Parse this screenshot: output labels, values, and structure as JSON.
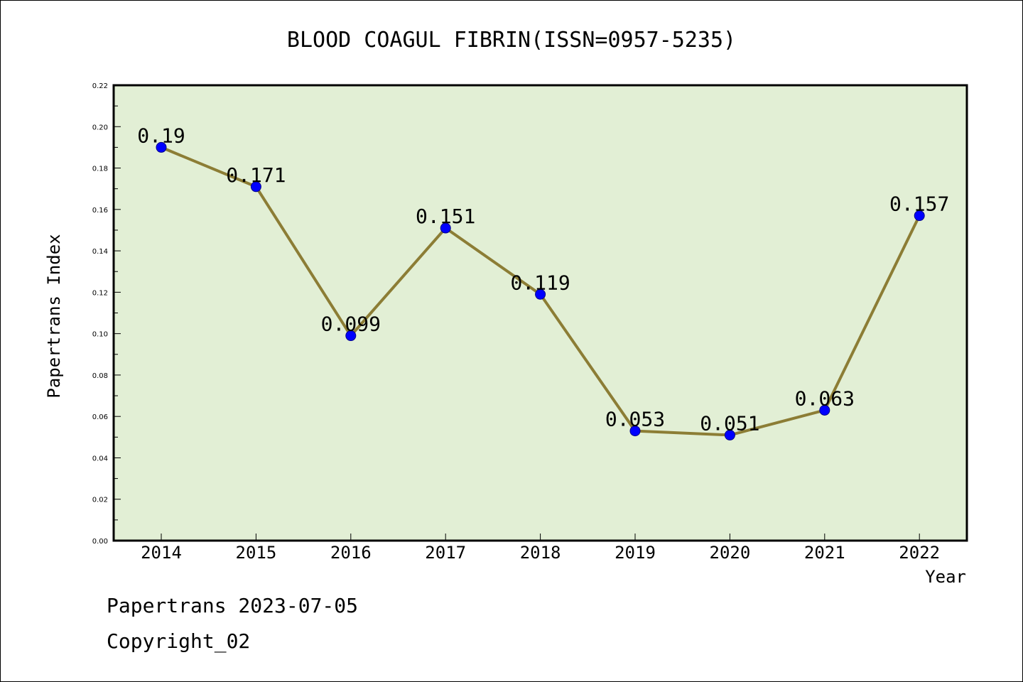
{
  "colors": {
    "plot_background": "#e2efd5",
    "line": "#8c7d35",
    "marker": "#0000ff",
    "marker_edge": "#00008b",
    "axis": "#000000"
  },
  "chart_data": {
    "type": "line",
    "title": "BLOOD COAGUL FIBRIN(ISSN=0957-5235)",
    "xlabel": "Year",
    "ylabel": "Papertrans Index",
    "categories": [
      "2014",
      "2015",
      "2016",
      "2017",
      "2018",
      "2019",
      "2020",
      "2021",
      "2022"
    ],
    "values": [
      0.19,
      0.171,
      0.099,
      0.151,
      0.119,
      0.053,
      0.051,
      0.063,
      0.157
    ],
    "value_labels": [
      "0.19",
      "0.171",
      "0.099",
      "0.151",
      "0.119",
      "0.053",
      "0.051",
      "0.063",
      "0.157"
    ],
    "ylim": [
      0,
      0.22
    ],
    "yticks": [
      "0.00",
      "0.02",
      "0.04",
      "0.06",
      "0.08",
      "0.10",
      "0.12",
      "0.14",
      "0.16",
      "0.18",
      "0.20",
      "0.22"
    ],
    "grid": false,
    "legend": "none"
  },
  "footer": {
    "line1": "Papertrans 2023-07-05",
    "line2": "Copyright_02"
  }
}
